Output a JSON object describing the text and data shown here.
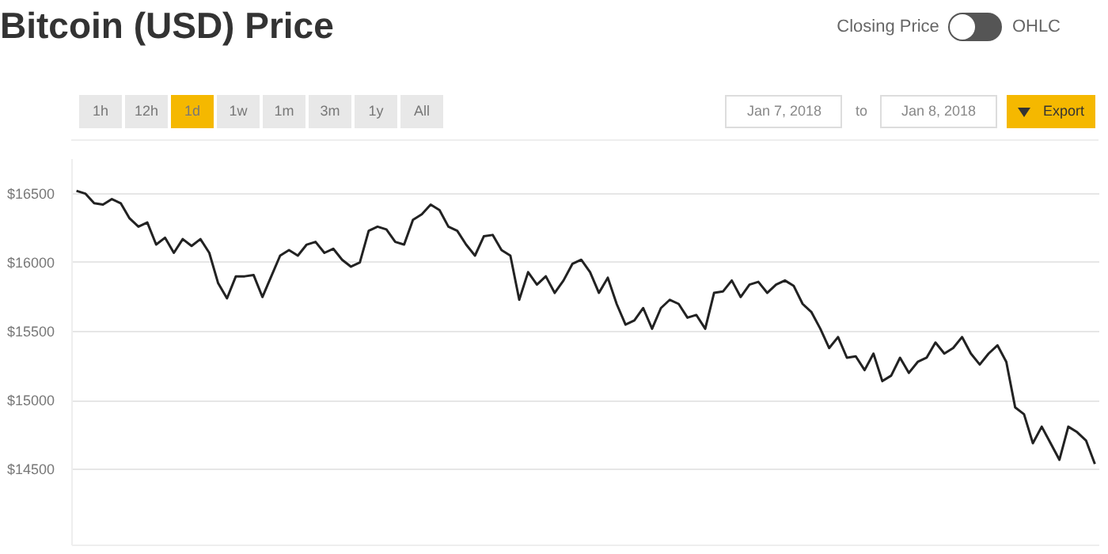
{
  "chart_data": {
    "type": "line",
    "title": "Bitcoin (USD) Price",
    "annotations": [
      "Closing Price",
      "OHLC",
      "1h",
      "12h",
      "1d",
      "1w",
      "1m",
      "3m",
      "1y",
      "All",
      "Jan 7, 2018",
      "to",
      "Jan 8, 2018",
      "Export"
    ],
    "categories": [
      null,
      null,
      null,
      null,
      null,
      null,
      null,
      null,
      null,
      null,
      null,
      null,
      null,
      null,
      null,
      null,
      null,
      null,
      null,
      null,
      null,
      null,
      null,
      null,
      null,
      null,
      null,
      null,
      null,
      null,
      null,
      null,
      null,
      null,
      null,
      null,
      null,
      null,
      null,
      null,
      null,
      null,
      null,
      null,
      null,
      null,
      null,
      null,
      null,
      null,
      null,
      null,
      null,
      null,
      null,
      null,
      null,
      null,
      null,
      null,
      null,
      null,
      null,
      null,
      null,
      null,
      null,
      null,
      null,
      null,
      null,
      null,
      null,
      null,
      null,
      null,
      null,
      null,
      null,
      null,
      null,
      null,
      null,
      null,
      null,
      null,
      null,
      null,
      null,
      null,
      null,
      null,
      null,
      null,
      null,
      null,
      null,
      null,
      null,
      null,
      null,
      null,
      null,
      null,
      null,
      null,
      null,
      null,
      null,
      null,
      null,
      null,
      null,
      null,
      null,
      null
    ],
    "series": [
      {
        "color": "#222222",
        "values": [
          16520,
          16500,
          16430,
          16420,
          16460,
          16430,
          16320,
          16260,
          16290,
          16130,
          16180,
          16070,
          16170,
          16120,
          16170,
          16070,
          15850,
          15740,
          15900,
          15900,
          15910,
          15750,
          15900,
          16050,
          16090,
          16050,
          16130,
          16150,
          16070,
          16100,
          16020,
          15970,
          16000,
          16230,
          16260,
          16240,
          16150,
          16130,
          16310,
          16350,
          16420,
          16380,
          16260,
          16230,
          16130,
          16050,
          16190,
          16200,
          16090,
          16050,
          15730,
          15930,
          15840,
          15900,
          15780,
          15870,
          15990,
          16020,
          15930,
          15780,
          15890,
          15700,
          15550,
          15580,
          15670,
          15520,
          15670,
          15730,
          15700,
          15600,
          15620,
          15520,
          15780,
          15790,
          15870,
          15750,
          15840,
          15860,
          15780,
          15840,
          15870,
          15830,
          15700,
          15640,
          15520,
          15380,
          15460,
          15310,
          15320,
          15220,
          15340,
          15140,
          15180,
          15310,
          15200,
          15280,
          15310,
          15420,
          15340,
          15380,
          15460,
          15340,
          15260,
          15340,
          15400,
          15280,
          14950,
          14900,
          14690,
          14810,
          14690,
          14570,
          14810,
          14770,
          14710,
          14540
        ]
      }
    ],
    "ylim": [
      13950,
      16750
    ],
    "yticks": [
      {
        "value": 14500,
        "label": "$14500"
      },
      {
        "value": 15000,
        "label": "$15000"
      },
      {
        "value": 15500,
        "label": "$15500"
      },
      {
        "value": 16000,
        "label": "$16000"
      },
      {
        "value": 16500,
        "label": "$16500"
      }
    ],
    "grid": "y",
    "tick_labels": "y"
  }
}
